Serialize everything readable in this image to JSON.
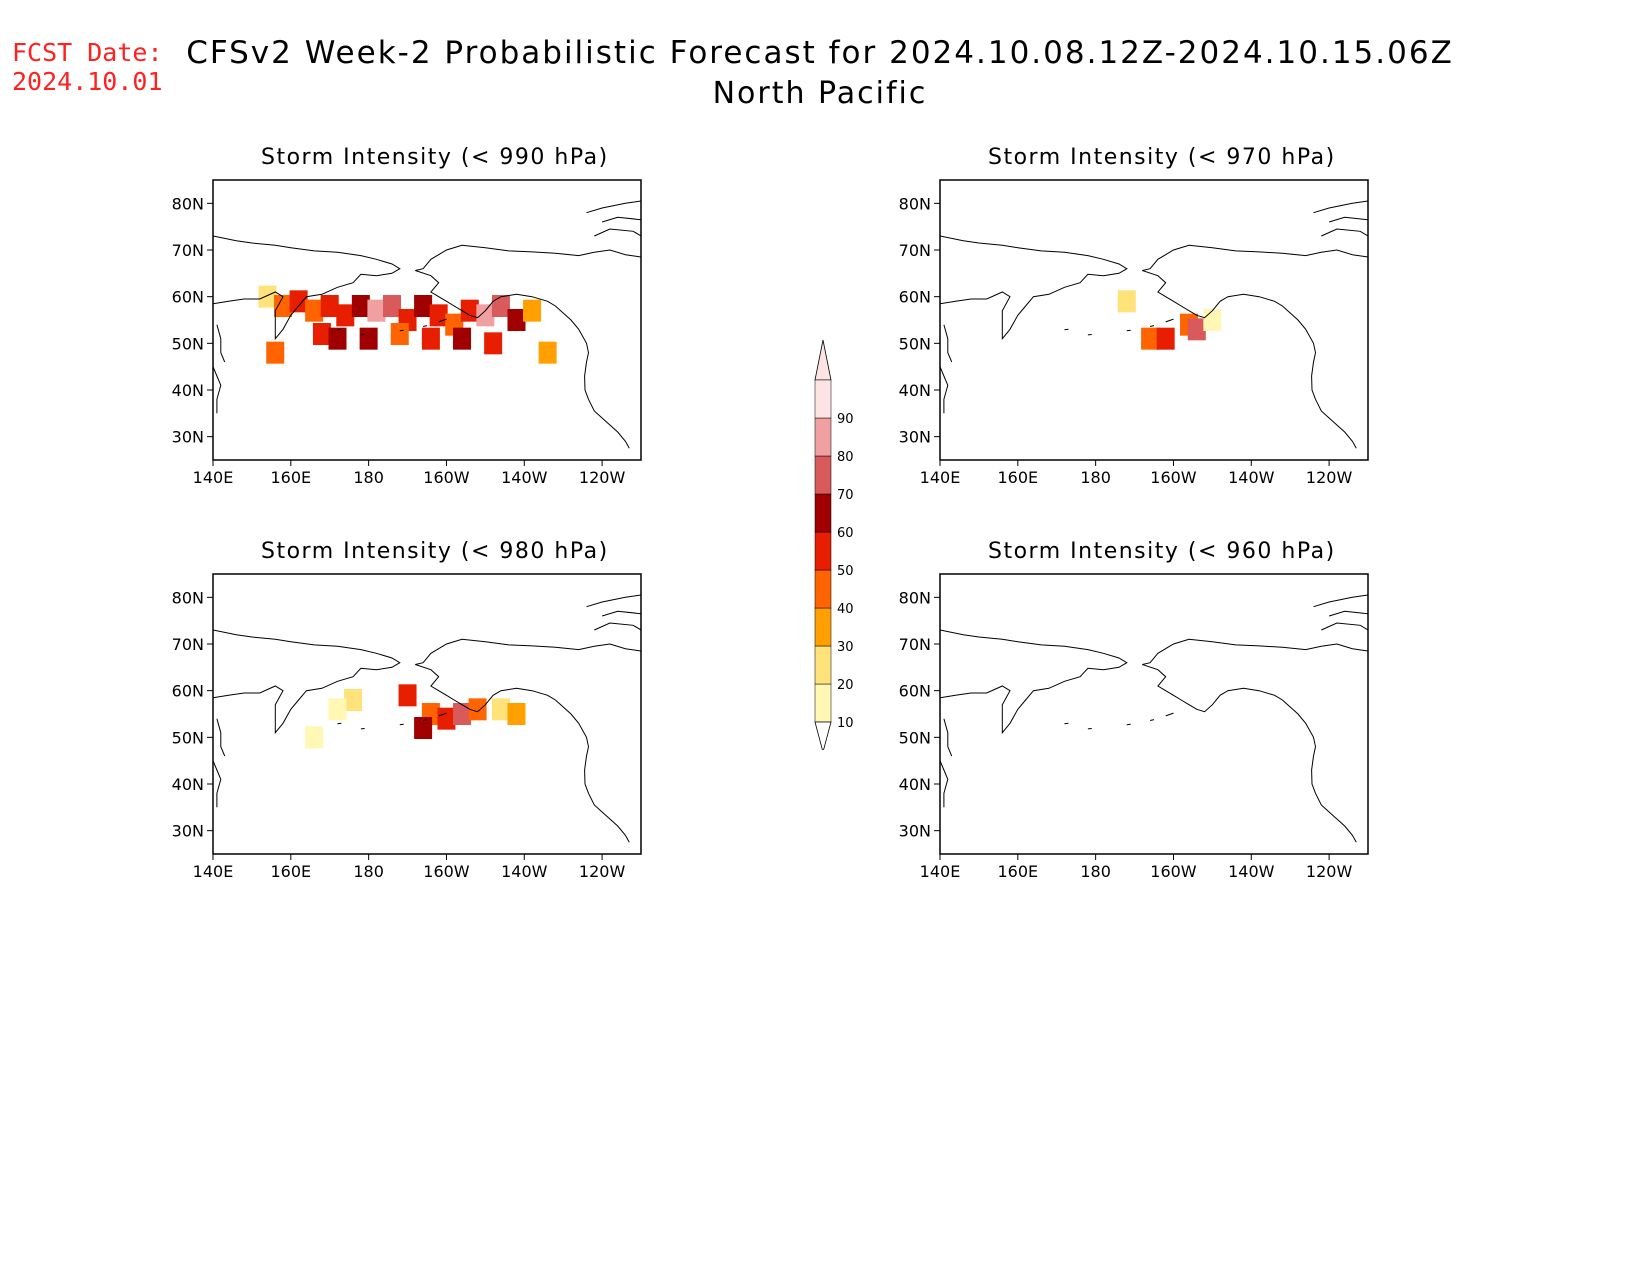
{
  "header": {
    "fcst_label": "FCST Date:",
    "fcst_date": "2024.10.01",
    "title": "CFSv2 Week-2 Probabilistic Forecast for 2024.10.08.12Z-2024.10.15.06Z",
    "subtitle": "North Pacific"
  },
  "panels": [
    {
      "id": "p990",
      "title": "Storm Intensity (< 990 hPa)",
      "threshold_hpa": 990,
      "coverage": "widespread"
    },
    {
      "id": "p970",
      "title": "Storm Intensity (< 970 hPa)",
      "threshold_hpa": 970,
      "coverage": "limited"
    },
    {
      "id": "p980",
      "title": "Storm Intensity (< 980 hPa)",
      "threshold_hpa": 980,
      "coverage": "moderate"
    },
    {
      "id": "p960",
      "title": "Storm Intensity (< 960 hPa)",
      "threshold_hpa": 960,
      "coverage": "none"
    }
  ],
  "axes": {
    "lat_ticks": [
      "80N",
      "70N",
      "60N",
      "50N",
      "40N",
      "30N"
    ],
    "lon_ticks": [
      "140E",
      "160E",
      "180",
      "160W",
      "140W",
      "120W"
    ]
  },
  "colorbar": {
    "levels": [
      "10",
      "20",
      "30",
      "40",
      "50",
      "60",
      "70",
      "80",
      "90"
    ],
    "colors": [
      "#fff7b3",
      "#ffe27a",
      "#ffa000",
      "#ff6400",
      "#e81e00",
      "#a00000",
      "#d85a5a",
      "#f0a0a0",
      "#fde4e4"
    ]
  },
  "chart_data": {
    "type": "heatmap",
    "variable": "probability of storm intensity below threshold (%)",
    "x_range": [
      "140E",
      "110W"
    ],
    "y_range": [
      "25N",
      "85N"
    ],
    "cells": {
      "p990": [
        {
          "lon": 154,
          "lat": 60,
          "v": 20
        },
        {
          "lon": 158,
          "lat": 58,
          "v": 40
        },
        {
          "lon": 162,
          "lat": 59,
          "v": 50
        },
        {
          "lon": 166,
          "lat": 57,
          "v": 40
        },
        {
          "lon": 170,
          "lat": 58,
          "v": 50
        },
        {
          "lon": 174,
          "lat": 56,
          "v": 50
        },
        {
          "lon": 178,
          "lat": 58,
          "v": 60
        },
        {
          "lon": 182,
          "lat": 57,
          "v": 80
        },
        {
          "lon": 186,
          "lat": 58,
          "v": 70
        },
        {
          "lon": 190,
          "lat": 55,
          "v": 50
        },
        {
          "lon": 194,
          "lat": 58,
          "v": 60
        },
        {
          "lon": 198,
          "lat": 56,
          "v": 50
        },
        {
          "lon": 202,
          "lat": 54,
          "v": 40
        },
        {
          "lon": 206,
          "lat": 57,
          "v": 50
        },
        {
          "lon": 210,
          "lat": 56,
          "v": 80
        },
        {
          "lon": 214,
          "lat": 58,
          "v": 70
        },
        {
          "lon": 218,
          "lat": 55,
          "v": 60
        },
        {
          "lon": 222,
          "lat": 57,
          "v": 30
        },
        {
          "lon": 168,
          "lat": 52,
          "v": 50
        },
        {
          "lon": 172,
          "lat": 51,
          "v": 60
        },
        {
          "lon": 180,
          "lat": 51,
          "v": 60
        },
        {
          "lon": 188,
          "lat": 52,
          "v": 40
        },
        {
          "lon": 196,
          "lat": 51,
          "v": 50
        },
        {
          "lon": 204,
          "lat": 51,
          "v": 60
        },
        {
          "lon": 212,
          "lat": 50,
          "v": 50
        },
        {
          "lon": 156,
          "lat": 48,
          "v": 40
        },
        {
          "lon": 226,
          "lat": 48,
          "v": 30
        }
      ],
      "p970": [
        {
          "lon": 188,
          "lat": 59,
          "v": 20
        },
        {
          "lon": 194,
          "lat": 51,
          "v": 40
        },
        {
          "lon": 198,
          "lat": 51,
          "v": 50
        },
        {
          "lon": 204,
          "lat": 54,
          "v": 40
        },
        {
          "lon": 206,
          "lat": 53,
          "v": 70
        },
        {
          "lon": 210,
          "lat": 55,
          "v": 10
        }
      ],
      "p980": [
        {
          "lon": 176,
          "lat": 58,
          "v": 20
        },
        {
          "lon": 190,
          "lat": 59,
          "v": 50
        },
        {
          "lon": 196,
          "lat": 55,
          "v": 40
        },
        {
          "lon": 194,
          "lat": 52,
          "v": 60
        },
        {
          "lon": 200,
          "lat": 54,
          "v": 50
        },
        {
          "lon": 204,
          "lat": 55,
          "v": 70
        },
        {
          "lon": 208,
          "lat": 56,
          "v": 40
        },
        {
          "lon": 214,
          "lat": 56,
          "v": 20
        },
        {
          "lon": 218,
          "lat": 55,
          "v": 30
        },
        {
          "lon": 166,
          "lat": 50,
          "v": 10
        },
        {
          "lon": 172,
          "lat": 56,
          "v": 10
        }
      ],
      "p960": []
    }
  }
}
